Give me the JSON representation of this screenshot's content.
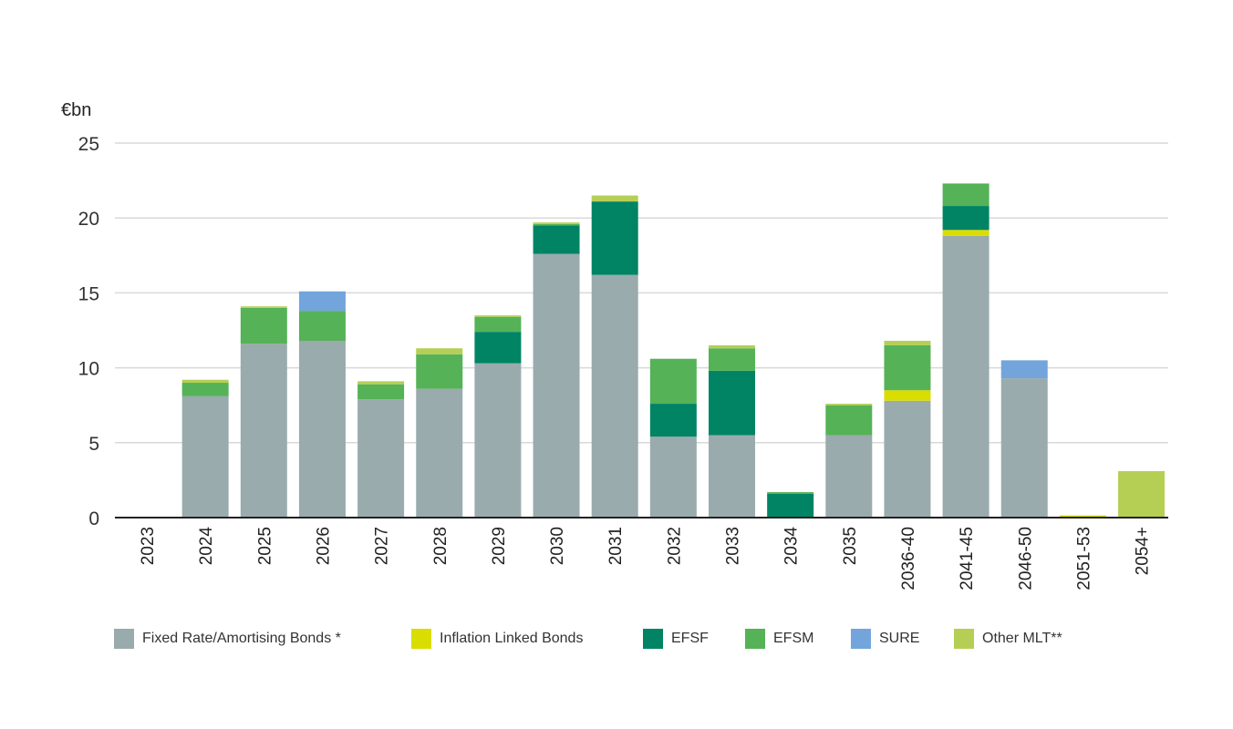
{
  "chart_data": {
    "type": "bar",
    "stacked": true,
    "ylabel": "€bn",
    "ylim": [
      0,
      25
    ],
    "yticks": [
      0,
      5,
      10,
      15,
      20,
      25
    ],
    "grid": true,
    "legend_position": "bottom",
    "categories": [
      "2023",
      "2024",
      "2025",
      "2026",
      "2027",
      "2028",
      "2029",
      "2030",
      "2031",
      "2032",
      "2033",
      "2034",
      "2035",
      "2036-40",
      "2041-45",
      "2046-50",
      "2051-53",
      "2054+"
    ],
    "series": [
      {
        "name": "Fixed Rate/Amortising Bonds *",
        "color": "#9aabad",
        "values": [
          0,
          8.1,
          11.6,
          11.8,
          7.9,
          8.6,
          10.3,
          17.6,
          16.2,
          5.4,
          5.5,
          0,
          5.5,
          7.8,
          18.8,
          9.3,
          0,
          0
        ]
      },
      {
        "name": "Inflation Linked Bonds",
        "color": "#dadd00",
        "values": [
          0,
          0,
          0,
          0,
          0,
          0,
          0,
          0,
          0,
          0,
          0,
          0,
          0,
          0.7,
          0.4,
          0,
          0.15,
          0
        ]
      },
      {
        "name": "EFSF",
        "color": "#008464",
        "values": [
          0,
          0,
          0,
          0,
          0,
          0,
          2.1,
          1.9,
          4.9,
          2.2,
          4.3,
          1.6,
          0,
          0,
          1.6,
          0,
          0,
          0
        ]
      },
      {
        "name": "EFSM",
        "color": "#55b257",
        "values": [
          0,
          0.9,
          2.4,
          2.0,
          1.0,
          2.3,
          1.0,
          0.1,
          0,
          3.0,
          1.5,
          0.1,
          2.0,
          3.0,
          1.5,
          0,
          0,
          0
        ]
      },
      {
        "name": "SURE",
        "color": "#73a5dc",
        "values": [
          0,
          0,
          0,
          1.3,
          0,
          0,
          0,
          0,
          0,
          0,
          0,
          0,
          0,
          0,
          0,
          1.2,
          0,
          0
        ]
      },
      {
        "name": "Other MLT**",
        "color": "#b5cf55",
        "values": [
          0,
          0.2,
          0.1,
          0,
          0.2,
          0.4,
          0.1,
          0.1,
          0.4,
          0,
          0.2,
          0,
          0.1,
          0.3,
          0,
          0,
          0,
          3.1
        ]
      }
    ]
  }
}
